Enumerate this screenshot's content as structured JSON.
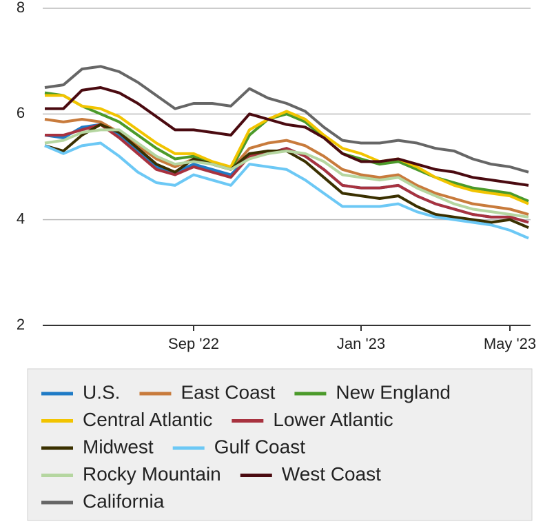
{
  "chart_data": {
    "type": "line",
    "categories": [
      null,
      null,
      null,
      null,
      null,
      null,
      null,
      null,
      "Sep '22",
      null,
      null,
      null,
      null,
      null,
      null,
      null,
      null,
      "Jan '23",
      null,
      null,
      null,
      null,
      null,
      null,
      null,
      "May '23",
      null
    ],
    "ylim": [
      2,
      8
    ],
    "yticks": [
      2,
      4,
      6,
      8
    ],
    "grid": true,
    "series": [
      {
        "name": "U.S.",
        "color": "#1f7bc6",
        "values": [
          5.6,
          5.55,
          5.75,
          5.8,
          5.6,
          5.3,
          5.0,
          4.9,
          5.05,
          4.95,
          4.85,
          5.2,
          5.25,
          5.35,
          5.2,
          4.95,
          4.65,
          4.6,
          4.6,
          4.65,
          4.45,
          4.3,
          4.2,
          4.1,
          4.05,
          4.05,
          3.95
        ]
      },
      {
        "name": "East Coast",
        "color": "#c87b3c",
        "values": [
          5.9,
          5.85,
          5.9,
          5.85,
          5.65,
          5.4,
          5.15,
          5.0,
          5.15,
          5.05,
          4.95,
          5.35,
          5.45,
          5.5,
          5.4,
          5.2,
          4.95,
          4.85,
          4.8,
          4.85,
          4.65,
          4.5,
          4.4,
          4.3,
          4.25,
          4.2,
          4.1
        ]
      },
      {
        "name": "New England",
        "color": "#4b9a2a",
        "values": [
          6.4,
          6.35,
          6.15,
          6.0,
          5.85,
          5.6,
          5.35,
          5.15,
          5.2,
          5.05,
          4.95,
          5.6,
          5.9,
          6.0,
          5.85,
          5.55,
          5.25,
          5.15,
          5.05,
          5.1,
          4.95,
          4.8,
          4.7,
          4.6,
          4.55,
          4.5,
          4.35
        ]
      },
      {
        "name": "Central Atlantic",
        "color": "#f2c400",
        "values": [
          6.35,
          6.35,
          6.15,
          6.1,
          5.95,
          5.7,
          5.45,
          5.25,
          5.25,
          5.1,
          5.0,
          5.7,
          5.9,
          6.05,
          5.9,
          5.6,
          5.35,
          5.25,
          5.1,
          5.15,
          5.0,
          4.8,
          4.65,
          4.55,
          4.5,
          4.45,
          4.3
        ]
      },
      {
        "name": "Lower Atlantic",
        "color": "#a8323f",
        "values": [
          5.6,
          5.6,
          5.7,
          5.8,
          5.55,
          5.25,
          4.95,
          4.85,
          5.0,
          4.9,
          4.8,
          5.2,
          5.25,
          5.35,
          5.2,
          4.95,
          4.65,
          4.6,
          4.6,
          4.65,
          4.45,
          4.3,
          4.2,
          4.1,
          4.05,
          4.05,
          3.95
        ]
      },
      {
        "name": "Midwest",
        "color": "#3a3000",
        "values": [
          5.4,
          5.3,
          5.6,
          5.8,
          5.65,
          5.35,
          5.05,
          4.9,
          5.15,
          5.05,
          4.95,
          5.25,
          5.3,
          5.3,
          5.1,
          4.8,
          4.5,
          4.45,
          4.4,
          4.45,
          4.25,
          4.1,
          4.05,
          4.0,
          3.95,
          4.0,
          3.85
        ]
      },
      {
        "name": "Gulf Coast",
        "color": "#6cc8f5",
        "values": [
          5.4,
          5.25,
          5.4,
          5.45,
          5.2,
          4.9,
          4.7,
          4.65,
          4.85,
          4.75,
          4.65,
          5.05,
          5.0,
          4.95,
          4.75,
          4.5,
          4.25,
          4.25,
          4.25,
          4.3,
          4.15,
          4.05,
          4.0,
          3.95,
          3.9,
          3.8,
          3.65
        ]
      },
      {
        "name": "Rocky Mountain",
        "color": "#b5d6a0",
        "values": [
          5.45,
          5.5,
          5.65,
          5.7,
          5.7,
          5.45,
          5.2,
          5.05,
          5.1,
          5.05,
          4.95,
          5.15,
          5.25,
          5.3,
          5.25,
          5.1,
          4.85,
          4.8,
          4.75,
          4.8,
          4.6,
          4.45,
          4.3,
          4.2,
          4.15,
          4.1,
          4.05
        ]
      },
      {
        "name": "West Coast",
        "color": "#4a0a10",
        "values": [
          6.1,
          6.1,
          6.45,
          6.5,
          6.4,
          6.2,
          5.95,
          5.7,
          5.7,
          5.65,
          5.6,
          6.0,
          5.9,
          5.8,
          5.75,
          5.55,
          5.25,
          5.1,
          5.1,
          5.15,
          5.05,
          4.95,
          4.9,
          4.8,
          4.75,
          4.7,
          4.65
        ]
      },
      {
        "name": "California",
        "color": "#666666",
        "values": [
          6.5,
          6.55,
          6.85,
          6.9,
          6.8,
          6.6,
          6.35,
          6.1,
          6.2,
          6.2,
          6.15,
          6.48,
          6.3,
          6.2,
          6.05,
          5.75,
          5.5,
          5.45,
          5.45,
          5.5,
          5.45,
          5.35,
          5.3,
          5.15,
          5.05,
          5.0,
          4.9
        ]
      }
    ]
  }
}
